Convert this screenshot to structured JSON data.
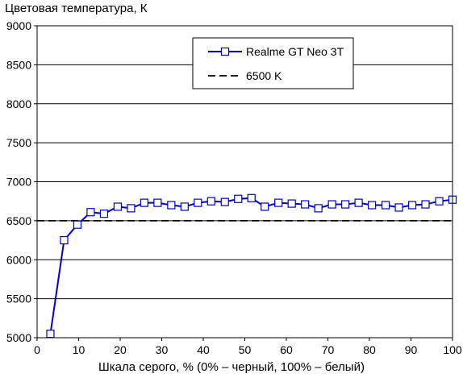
{
  "chart_data": {
    "type": "line",
    "title": "",
    "ylabel": "Цветовая температура, К",
    "xlabel": "Шкала серого, % (0% – черный, 100% – белый)",
    "xlim": [
      0,
      100
    ],
    "ylim": [
      5000,
      9000
    ],
    "xticks": [
      0,
      10,
      20,
      30,
      40,
      50,
      60,
      70,
      80,
      90,
      100
    ],
    "yticks": [
      5000,
      5500,
      6000,
      6500,
      7000,
      7500,
      8000,
      8500,
      9000
    ],
    "grid": "horizontal",
    "legend_position": "top-right",
    "series": [
      {
        "name": "Realme GT Neo 3T",
        "color": "#0000cc",
        "marker": "open-square",
        "x": [
          3.2,
          6.5,
          9.7,
          12.9,
          16.1,
          19.4,
          22.6,
          25.8,
          29.0,
          32.3,
          35.5,
          38.7,
          41.9,
          45.2,
          48.4,
          51.6,
          54.8,
          58.1,
          61.3,
          64.5,
          67.7,
          71.0,
          74.2,
          77.4,
          80.6,
          83.9,
          87.1,
          90.3,
          93.5,
          96.8,
          100
        ],
        "y": [
          5050,
          6250,
          6450,
          6610,
          6590,
          6680,
          6660,
          6730,
          6730,
          6700,
          6680,
          6730,
          6750,
          6740,
          6780,
          6790,
          6680,
          6730,
          6720,
          6710,
          6660,
          6710,
          6710,
          6730,
          6700,
          6700,
          6670,
          6700,
          6710,
          6750,
          6770
        ]
      },
      {
        "name": "6500 K",
        "color": "#000000",
        "style": "dashed",
        "x": [
          0,
          100
        ],
        "y": [
          6500,
          6500
        ]
      }
    ]
  }
}
